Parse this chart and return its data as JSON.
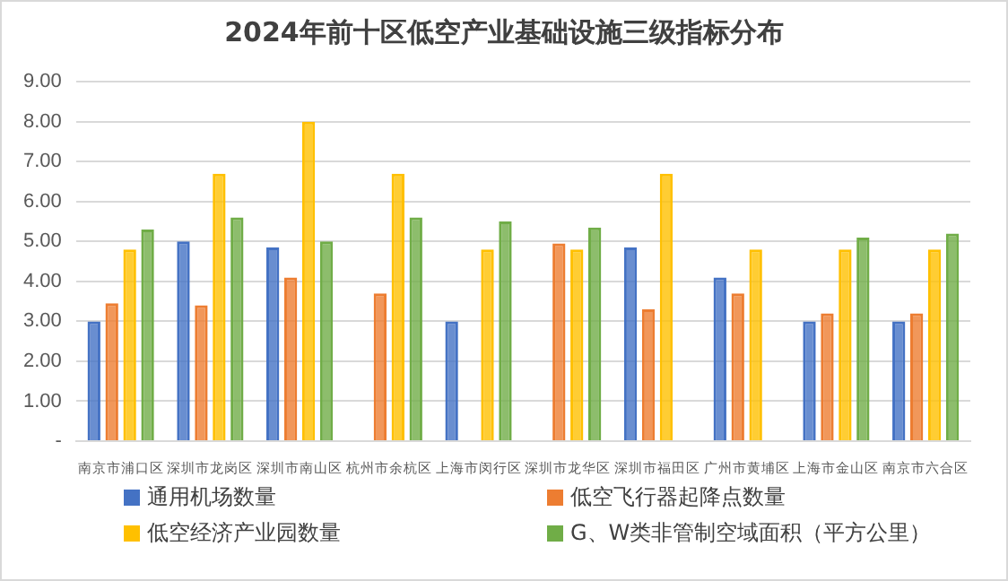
{
  "chart_data": {
    "type": "bar",
    "title": "2024年前十区低空产业基础设施三级指标分布",
    "categories": [
      "南京市浦口区",
      "深圳市龙岗区",
      "深圳市南山区",
      "杭州市余杭区",
      "上海市闵行区",
      "深圳市龙华区",
      "深圳市福田区",
      "广州市黄埔区",
      "上海市金山区",
      "南京市六合区"
    ],
    "series": [
      {
        "name": "通用机场数量",
        "color": "#4472c4",
        "values": [
          3.0,
          5.0,
          4.85,
          null,
          3.0,
          null,
          4.85,
          4.1,
          3.0,
          3.0
        ]
      },
      {
        "name": "低空飞行器起降点数量",
        "color": "#ed7d31",
        "values": [
          3.45,
          3.4,
          4.1,
          3.7,
          null,
          4.95,
          3.3,
          3.7,
          3.2,
          3.2
        ]
      },
      {
        "name": "低空经济产业园数量",
        "color": "#ffc000",
        "values": [
          4.8,
          6.7,
          8.0,
          6.7,
          4.8,
          4.8,
          6.7,
          4.8,
          4.8,
          4.8
        ]
      },
      {
        "name": "G、W类非管制空域面积（平方公里）",
        "color": "#70ad47",
        "values": [
          5.3,
          5.6,
          5.0,
          5.6,
          5.5,
          5.35,
          null,
          null,
          5.1,
          5.2
        ]
      }
    ],
    "ylim": [
      0,
      9
    ],
    "yticks": [
      {
        "value": 0,
        "label": "-"
      },
      {
        "value": 1,
        "label": "1.00"
      },
      {
        "value": 2,
        "label": "2.00"
      },
      {
        "value": 3,
        "label": "3.00"
      },
      {
        "value": 4,
        "label": "4.00"
      },
      {
        "value": 5,
        "label": "5.00"
      },
      {
        "value": 6,
        "label": "6.00"
      },
      {
        "value": 7,
        "label": "7.00"
      },
      {
        "value": 8,
        "label": "8.00"
      },
      {
        "value": 9,
        "label": "9.00"
      }
    ],
    "grid": "y",
    "legend": "bottom"
  }
}
